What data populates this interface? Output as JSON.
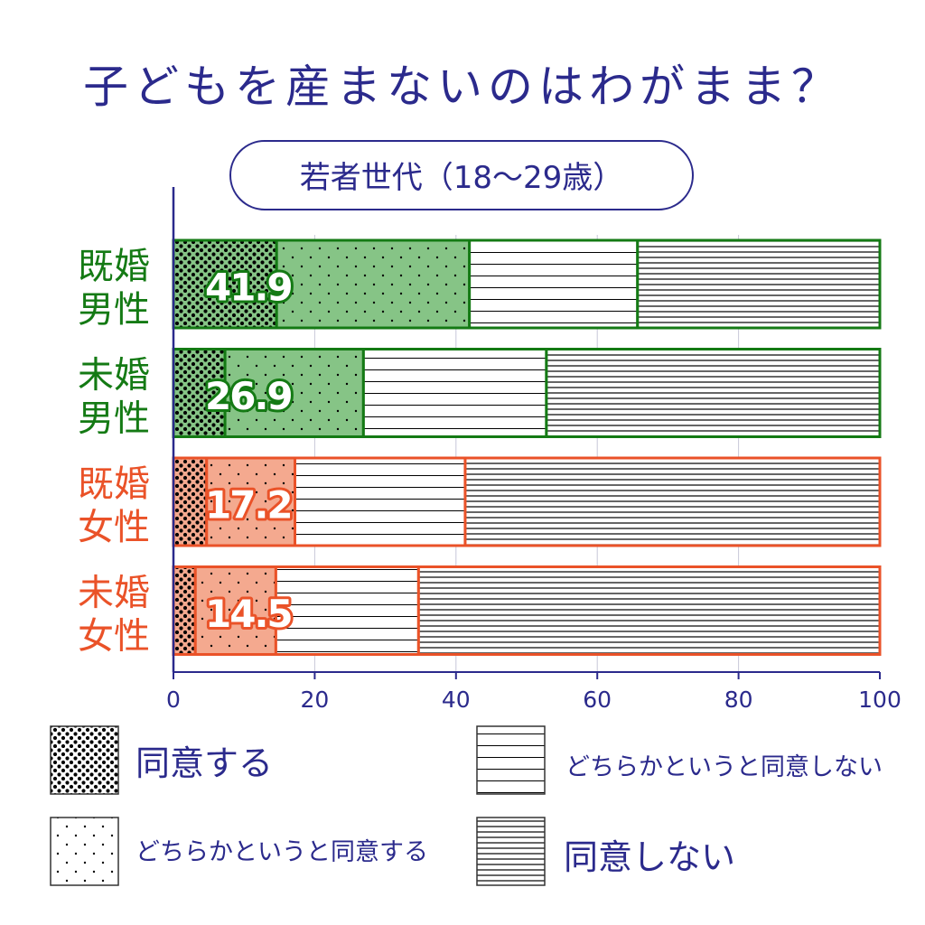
{
  "colors": {
    "navy": "#2b2a8c",
    "green": "#147a14",
    "green_fill": "#86c486",
    "orange": "#ea5228",
    "orange_fill": "#f4a98f",
    "white": "#ffffff"
  },
  "chart_data": {
    "type": "bar",
    "orientation": "horizontal",
    "stacked": true,
    "title": "子どもを産まないのはわがまま？",
    "subtitle": "若者世代（18〜29歳）",
    "xlim": [
      0,
      100
    ],
    "x_ticks": [
      "0",
      "20",
      "40",
      "60",
      "80",
      "100"
    ],
    "grid": true,
    "legend_position": "bottom",
    "categories": [
      {
        "label_line1": "既婚",
        "label_line2": "男性",
        "color": "green",
        "highlight": "41.9"
      },
      {
        "label_line1": "未婚",
        "label_line2": "男性",
        "color": "green",
        "highlight": "26.9"
      },
      {
        "label_line1": "既婚",
        "label_line2": "女性",
        "color": "orange",
        "highlight": "17.2"
      },
      {
        "label_line1": "未婚",
        "label_line2": "女性",
        "color": "orange",
        "highlight": "14.5"
      }
    ],
    "series": [
      {
        "name": "同意する",
        "pattern": "dense-dots",
        "values": [
          14.6,
          7.3,
          4.7,
          3.1
        ]
      },
      {
        "name": "どちらかというと同意する",
        "pattern": "sparse-dots",
        "values": [
          27.3,
          19.6,
          12.5,
          11.4
        ]
      },
      {
        "name": "どちらかというと同意しない",
        "pattern": "sparse-lines",
        "values": [
          23.8,
          25.9,
          24.1,
          20.2
        ]
      },
      {
        "name": "同意しない",
        "pattern": "dense-lines",
        "values": [
          34.3,
          47.2,
          58.7,
          65.3
        ]
      }
    ]
  }
}
